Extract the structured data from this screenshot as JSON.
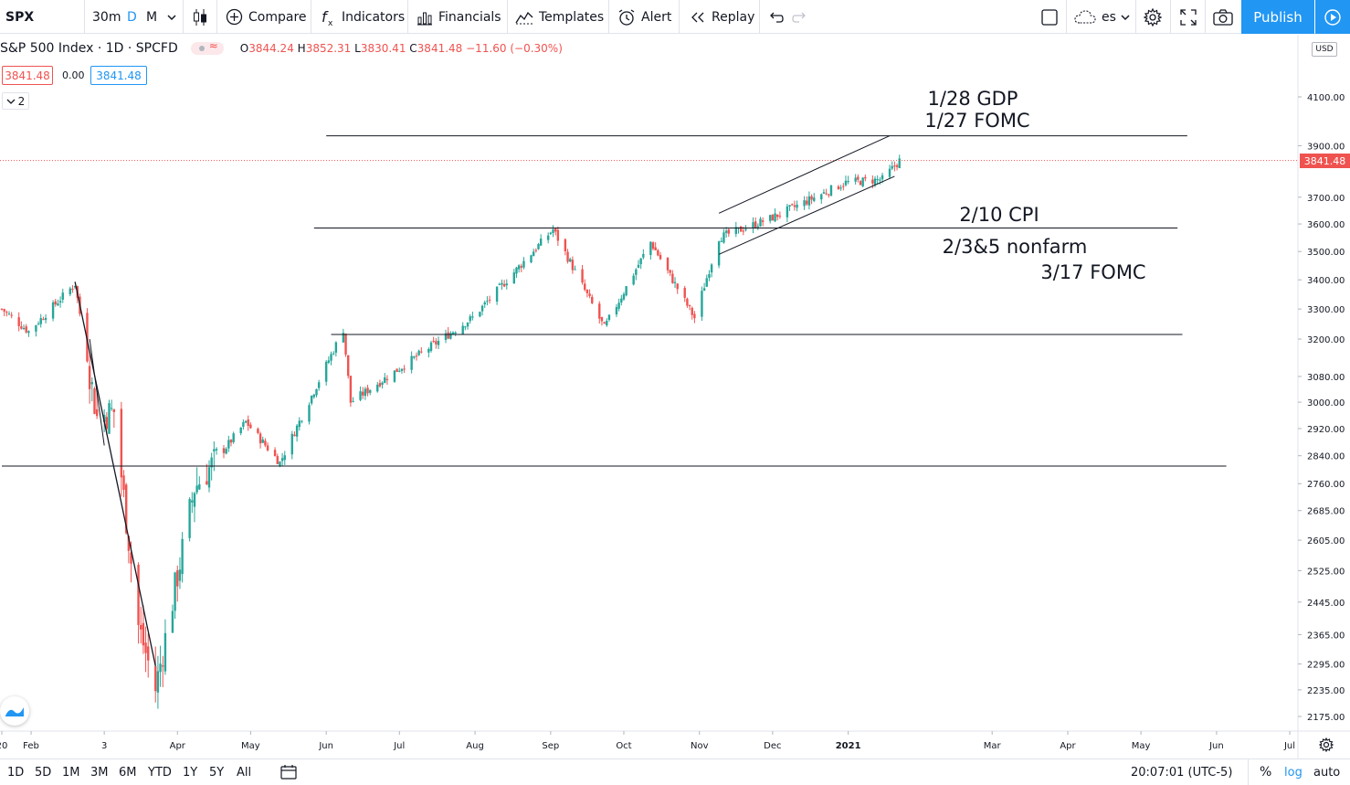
{
  "toolbar": {
    "symbol": "SPX",
    "interval": "30m",
    "interval_d": "D",
    "interval_m": "M",
    "compare": "Compare",
    "indicators": "Indicators",
    "financials": "Financials",
    "templates": "Templates",
    "alert": "Alert",
    "replay": "Replay",
    "layout_name": "es",
    "publish": "Publish"
  },
  "legend": {
    "title": "S&P 500 Index · 1D · SPCFD",
    "open_label": "O",
    "open": "3844.24",
    "high_label": "H",
    "high": "3852.31",
    "low_label": "L",
    "low": "3830.41",
    "close_label": "C",
    "close": "3841.48",
    "change": "−11.60 (−0.30%)",
    "bid": "3841.48",
    "spread": "0.00",
    "ask": "3841.48",
    "collapse_count": "2"
  },
  "price_axis": {
    "currency": "USD",
    "last_price": "3841.48",
    "ticks": [
      {
        "label": "4100.00",
        "value": 4100
      },
      {
        "label": "3900.00",
        "value": 3900
      },
      {
        "label": "3700.00",
        "value": 3700
      },
      {
        "label": "3600.00",
        "value": 3600
      },
      {
        "label": "3500.00",
        "value": 3500
      },
      {
        "label": "3400.00",
        "value": 3400
      },
      {
        "label": "3300.00",
        "value": 3300
      },
      {
        "label": "3200.00",
        "value": 3200
      },
      {
        "label": "3080.00",
        "value": 3080
      },
      {
        "label": "3000.00",
        "value": 3000
      },
      {
        "label": "2920.00",
        "value": 2920
      },
      {
        "label": "2840.00",
        "value": 2840
      },
      {
        "label": "2760.00",
        "value": 2760
      },
      {
        "label": "2685.00",
        "value": 2685
      },
      {
        "label": "2605.00",
        "value": 2605
      },
      {
        "label": "2525.00",
        "value": 2525
      },
      {
        "label": "2445.00",
        "value": 2445
      },
      {
        "label": "2365.00",
        "value": 2365
      },
      {
        "label": "2295.00",
        "value": 2295
      },
      {
        "label": "2235.00",
        "value": 2235
      },
      {
        "label": "2175.00",
        "value": 2175
      }
    ]
  },
  "time_axis": {
    "labels": [
      {
        "label": "20",
        "bold": false
      },
      {
        "label": "Feb",
        "bold": false
      },
      {
        "label": "3",
        "bold": false
      },
      {
        "label": "Apr",
        "bold": false
      },
      {
        "label": "May",
        "bold": false
      },
      {
        "label": "Jun",
        "bold": false
      },
      {
        "label": "Jul",
        "bold": false
      },
      {
        "label": "Aug",
        "bold": false
      },
      {
        "label": "Sep",
        "bold": false
      },
      {
        "label": "Oct",
        "bold": false
      },
      {
        "label": "Nov",
        "bold": false
      },
      {
        "label": "Dec",
        "bold": false
      },
      {
        "label": "2021",
        "bold": true
      },
      {
        "label": "Mar",
        "bold": false
      },
      {
        "label": "Apr",
        "bold": false
      },
      {
        "label": "May",
        "bold": false
      },
      {
        "label": "Jun",
        "bold": false
      },
      {
        "label": "Jul",
        "bold": false
      }
    ]
  },
  "annotations": [
    {
      "text": "1/28 GDP"
    },
    {
      "text": "1/27 FOMC"
    },
    {
      "text": "2/10 CPI"
    },
    {
      "text": "2/3&5 nonfarm"
    },
    {
      "text": "3/17 FOMC"
    }
  ],
  "bottom_bar": {
    "ranges": [
      "1D",
      "5D",
      "1M",
      "3M",
      "6M",
      "YTD",
      "1Y",
      "5Y",
      "All"
    ],
    "clock": "20:07:01 (UTC-5)",
    "percent": "%",
    "log": "log",
    "auto": "auto"
  },
  "colors": {
    "up": "#26a69a",
    "down": "#ef5350",
    "accent": "#2196f3",
    "line": "#131722"
  },
  "chart_data": {
    "type": "candlestick",
    "symbol": "SPX",
    "x_start": "2020-01-20",
    "x_end": "2021-07-01",
    "log_scale": true,
    "ylim": [
      2150,
      4180
    ],
    "last": 3841.48,
    "horizontal_levels": [
      3940,
      3585,
      3215,
      2810
    ],
    "channel": {
      "upper": [
        [
          "2020-11-09",
          3640
        ],
        [
          "2021-01-18",
          3940
        ]
      ],
      "lower": [
        [
          "2020-11-09",
          3490
        ],
        [
          "2021-01-20",
          3780
        ]
      ]
    },
    "crash_trendline": [
      [
        "2020-02-19",
        3393
      ],
      [
        "2020-03-23",
        2290
      ]
    ],
    "path": [
      [
        "2020-01-20",
        3300
      ],
      [
        "2020-01-31",
        3225
      ],
      [
        "2020-02-19",
        3386
      ],
      [
        "2020-02-28",
        2954
      ],
      [
        "2020-03-06",
        2972
      ],
      [
        "2020-03-16",
        2386
      ],
      [
        "2020-03-23",
        2237
      ],
      [
        "2020-04-08",
        2750
      ],
      [
        "2020-04-29",
        2940
      ],
      [
        "2020-05-13",
        2820
      ],
      [
        "2020-06-08",
        3232
      ],
      [
        "2020-06-11",
        3000
      ],
      [
        "2020-06-30",
        3100
      ],
      [
        "2020-07-31",
        3271
      ],
      [
        "2020-09-02",
        3580
      ],
      [
        "2020-09-23",
        3237
      ],
      [
        "2020-10-12",
        3534
      ],
      [
        "2020-10-30",
        3270
      ],
      [
        "2020-11-09",
        3550
      ],
      [
        "2020-11-30",
        3620
      ],
      [
        "2020-12-31",
        3756
      ],
      [
        "2021-01-15",
        3768
      ],
      [
        "2021-01-22",
        3841
      ]
    ]
  }
}
